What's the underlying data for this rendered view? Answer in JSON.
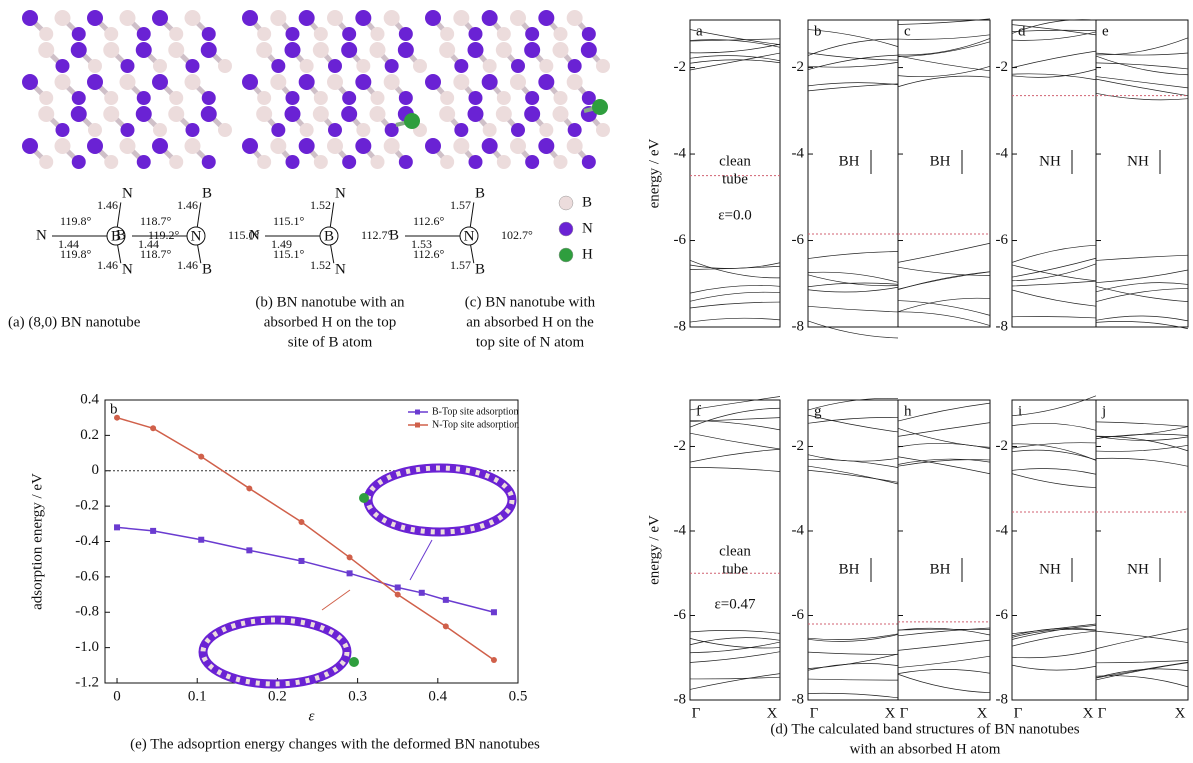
{
  "structures": [
    {
      "center": "B",
      "labels": [
        "1.46",
        "N",
        "119.8°",
        "119.2°",
        "N",
        "1.44",
        "119.8°",
        "1.46",
        "N"
      ]
    },
    {
      "center": "N",
      "labels": [
        "1.46",
        "B",
        "118.7°",
        "115.0°",
        "B",
        "1.44",
        "118.7°",
        "1.46",
        "B"
      ]
    },
    {
      "center": "B",
      "labels": [
        "1.52",
        "N",
        "115.1°",
        "112.7°",
        "N",
        "1.49",
        "115.1°",
        "1.52",
        "N"
      ]
    },
    {
      "center": "N",
      "labels": [
        "1.57",
        "B",
        "112.6°",
        "102.7°",
        "B",
        "1.53",
        "112.6°",
        "1.57",
        "B"
      ]
    }
  ],
  "atom_legend": [
    {
      "label": "B",
      "color": "#ecdcdc"
    },
    {
      "label": "N",
      "color": "#6a22d4"
    },
    {
      "label": "H",
      "color": "#2f9e3e"
    }
  ],
  "captions": {
    "a": [
      "(a) (8,0) BN nanotube"
    ],
    "b": [
      "(b) BN nanotube with an",
      "absorbed H on the top",
      "site of B atom"
    ],
    "c": [
      "(c) BN nanotube with",
      "an absorbed H on the",
      "top site of N atom"
    ],
    "d": [
      "(d) The calculated band structures of BN nanotubes",
      "with an absorbed H atom"
    ],
    "e": [
      "(e) The adsoprtion energy changes with the deformed BN nanotubes"
    ]
  },
  "chart_data": [
    {
      "type": "line",
      "panel_label": "b",
      "x_label": "ε",
      "y_label": "adsorption energy / eV",
      "xlim": [
        -0.015,
        0.5
      ],
      "ylim": [
        -1.2,
        0.4
      ],
      "xticks": [
        0,
        0.1,
        0.2,
        0.3,
        0.4,
        0.5
      ],
      "yticks": [
        0.4,
        0.2,
        0,
        -0.2,
        -0.4,
        -0.6,
        -0.8,
        {
          "value": -1,
          "label": "-1.0"
        },
        -1.2
      ],
      "hline": 0,
      "series": [
        {
          "name": "B-Top site adsorption",
          "color": "#6a3bd0",
          "x": [
            0,
            0.045,
            0.105,
            0.165,
            0.23,
            0.29,
            0.35,
            0.38,
            0.41,
            0.47
          ],
          "values": [
            -0.32,
            -0.34,
            -0.39,
            -0.45,
            -0.51,
            -0.58,
            -0.66,
            -0.69,
            -0.73,
            -0.8
          ]
        },
        {
          "name": "N-Top site adsorption",
          "color": "#d0604a",
          "x": [
            0,
            0.045,
            0.105,
            0.165,
            0.23,
            0.29,
            0.35,
            0.41,
            0.47
          ],
          "values": [
            0.3,
            0.24,
            0.08,
            -0.1,
            -0.29,
            -0.49,
            -0.7,
            -0.88,
            -1.07
          ]
        }
      ]
    },
    {
      "type": "band",
      "y_label": "energy / eV",
      "ylim": [
        -8,
        -0.9
      ],
      "yticks": [
        -2,
        -4,
        -6,
        -8
      ],
      "x_labels": [
        "Γ",
        "X"
      ],
      "panels": [
        {
          "label": "a",
          "level": -4.5,
          "annotations": [
            "clean",
            "tube",
            "ε=0.0"
          ]
        },
        {
          "label": "b",
          "level": -5.85,
          "annotations": [
            "BH"
          ]
        },
        {
          "label": "c",
          "level": -5.85,
          "annotations": [
            "BH"
          ]
        },
        {
          "label": "d",
          "level": -2.65,
          "annotations": [
            "NH"
          ]
        },
        {
          "label": "e",
          "level": -2.65,
          "annotations": [
            "NH"
          ]
        },
        {
          "label": "f",
          "level": -5.0,
          "annotations": [
            "clean",
            "tube",
            "ε=0.47"
          ]
        },
        {
          "label": "g",
          "level": -6.2,
          "annotations": [
            "BH"
          ]
        },
        {
          "label": "h",
          "level": -6.15,
          "annotations": [
            "BH"
          ]
        },
        {
          "label": "i",
          "level": -3.55,
          "annotations": [
            "NH"
          ]
        },
        {
          "label": "j",
          "level": -3.55,
          "annotations": [
            "NH"
          ]
        }
      ]
    }
  ]
}
